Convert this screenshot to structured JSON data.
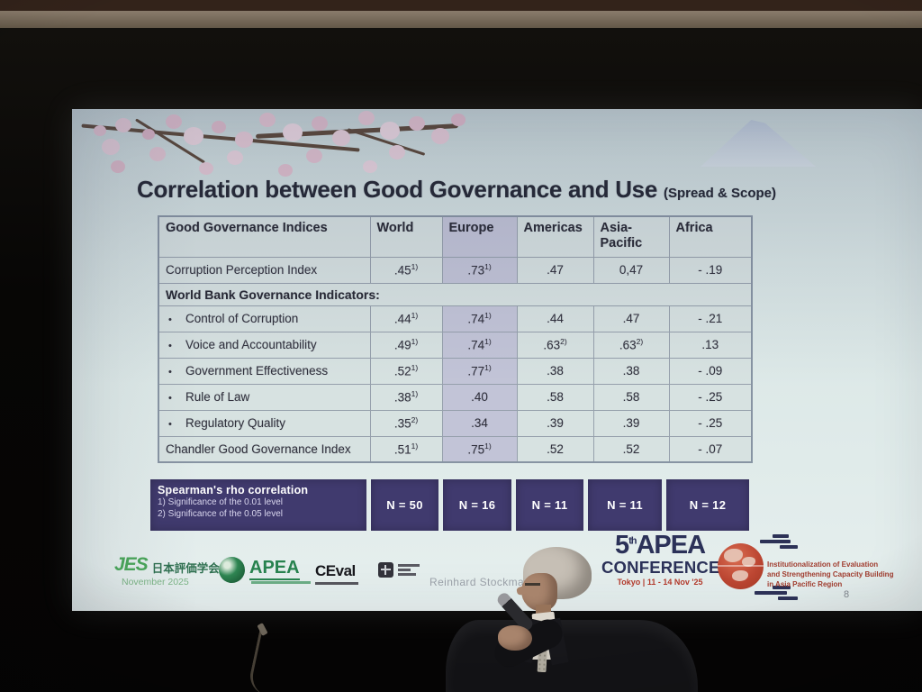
{
  "slide": {
    "title": "Correlation between Good Governance and Use",
    "title_suffix": "(Spread & Scope)",
    "table": {
      "columns": [
        "Good Governance Indices",
        "World",
        "Europe",
        "Americas",
        "Asia-Pacific",
        "Africa"
      ],
      "rows": [
        {
          "label": "Corruption Perception Index",
          "bullet": false,
          "section": false,
          "cells": [
            {
              "t": ".45",
              "s": "1)"
            },
            {
              "t": ".73",
              "s": "1)"
            },
            {
              "t": ".47",
              "s": ""
            },
            {
              "t": "0,47",
              "s": ""
            },
            {
              "t": "- .19",
              "s": ""
            }
          ]
        },
        {
          "label": "World Bank Governance Indicators:",
          "bullet": false,
          "section": true,
          "cells": []
        },
        {
          "label": "Control of Corruption",
          "bullet": true,
          "section": false,
          "cells": [
            {
              "t": ".44",
              "s": "1)"
            },
            {
              "t": ".74",
              "s": "1)"
            },
            {
              "t": ".44",
              "s": ""
            },
            {
              "t": ".47",
              "s": ""
            },
            {
              "t": "- .21",
              "s": ""
            }
          ]
        },
        {
          "label": "Voice and Accountability",
          "bullet": true,
          "section": false,
          "cells": [
            {
              "t": ".49",
              "s": "1)"
            },
            {
              "t": ".74",
              "s": "1)"
            },
            {
              "t": ".63",
              "s": "2)"
            },
            {
              "t": ".63",
              "s": "2)"
            },
            {
              "t": ".13",
              "s": ""
            }
          ]
        },
        {
          "label": "Government Effectiveness",
          "bullet": true,
          "section": false,
          "cells": [
            {
              "t": ".52",
              "s": "1)"
            },
            {
              "t": ".77",
              "s": "1)"
            },
            {
              "t": ".38",
              "s": ""
            },
            {
              "t": ".38",
              "s": ""
            },
            {
              "t": "- .09",
              "s": ""
            }
          ]
        },
        {
          "label": "Rule of Law",
          "bullet": true,
          "section": false,
          "cells": [
            {
              "t": ".38",
              "s": "1)"
            },
            {
              "t": ".40",
              "s": ""
            },
            {
              "t": ".58",
              "s": ""
            },
            {
              "t": ".58",
              "s": ""
            },
            {
              "t": "- .25",
              "s": ""
            }
          ]
        },
        {
          "label": "Regulatory Quality",
          "bullet": true,
          "section": false,
          "cells": [
            {
              "t": ".35",
              "s": "2)"
            },
            {
              "t": ".34",
              "s": ""
            },
            {
              "t": ".39",
              "s": ""
            },
            {
              "t": ".39",
              "s": ""
            },
            {
              "t": "- .25",
              "s": ""
            }
          ]
        },
        {
          "label": "Chandler Good Governance Index",
          "bullet": false,
          "section": false,
          "cells": [
            {
              "t": ".51",
              "s": "1)"
            },
            {
              "t": ".75",
              "s": "1)"
            },
            {
              "t": ".52",
              "s": ""
            },
            {
              "t": ".52",
              "s": ""
            },
            {
              "t": "- .07",
              "s": ""
            }
          ]
        }
      ],
      "footer": {
        "title": "Spearman's rho correlation",
        "notes": [
          "1) Significance of the 0.01 level",
          "2) Significance of the 0.05 level"
        ],
        "n_values": [
          "N = 50",
          "N = 16",
          "N = 11",
          "N = 11",
          "N = 12"
        ]
      }
    },
    "logos": {
      "jes": {
        "acronym": "JES",
        "name_jp": "日本評価学会",
        "date": "November 2025"
      },
      "apea": {
        "name": "APEA"
      },
      "ceval": {
        "name": "CEval"
      },
      "author": "Reinhard Stockmann",
      "conference": {
        "number": "5",
        "ordinal_suffix": "th",
        "org": "APEA",
        "word": "CONFERENCE",
        "dates": "Tokyo | 11 - 14 Nov '25",
        "tagline_lines": [
          "Institutionalization of Evaluation",
          "and Strengthening Capacity Building",
          "in Asia Pacific Region"
        ]
      },
      "page_number": "8"
    },
    "colors": {
      "slide_background": "#dce8e7",
      "title_text": "#20232f",
      "europe_highlight": "#c2c4d7",
      "footer_navy": "#403a6e",
      "conference_navy": "#2b3158",
      "conference_red": "#b23a2c",
      "jes_green": "#4aa65a",
      "apea_green": "#27824e"
    }
  },
  "chart_data": {
    "type": "table",
    "title": "Correlation between Good Governance and Use (Spread & Scope)",
    "columns": [
      "Good Governance Indices",
      "World",
      "Europe",
      "Americas",
      "Asia-Pacific",
      "Africa"
    ],
    "rows": [
      {
        "label": "Corruption Perception Index",
        "values": [
          ".45¹⁾",
          ".73¹⁾",
          ".47",
          "0,47",
          "-.19"
        ]
      },
      {
        "label": "World Bank Governance Indicators:",
        "values": []
      },
      {
        "label": "Control of Corruption",
        "values": [
          ".44¹⁾",
          ".74¹⁾",
          ".44",
          ".47",
          "-.21"
        ]
      },
      {
        "label": "Voice and Accountability",
        "values": [
          ".49¹⁾",
          ".74¹⁾",
          ".63²⁾",
          ".63²⁾",
          ".13"
        ]
      },
      {
        "label": "Government Effectiveness",
        "values": [
          ".52¹⁾",
          ".77¹⁾",
          ".38",
          ".38",
          "-.09"
        ]
      },
      {
        "label": "Rule of Law",
        "values": [
          ".38¹⁾",
          ".40",
          ".58",
          ".58",
          "-.25"
        ]
      },
      {
        "label": "Regulatory Quality",
        "values": [
          ".35²⁾",
          ".34",
          ".39",
          ".39",
          "-.25"
        ]
      },
      {
        "label": "Chandler Good Governance Index",
        "values": [
          ".51¹⁾",
          ".75¹⁾",
          ".52",
          ".52",
          "-.07"
        ]
      }
    ],
    "sample_sizes": [
      "N = 50",
      "N = 16",
      "N = 11",
      "N = 11",
      "N = 12"
    ],
    "notes": [
      "Spearman's rho correlation",
      "1) Significance of the 0.01 level",
      "2) Significance of the 0.05 level"
    ]
  }
}
